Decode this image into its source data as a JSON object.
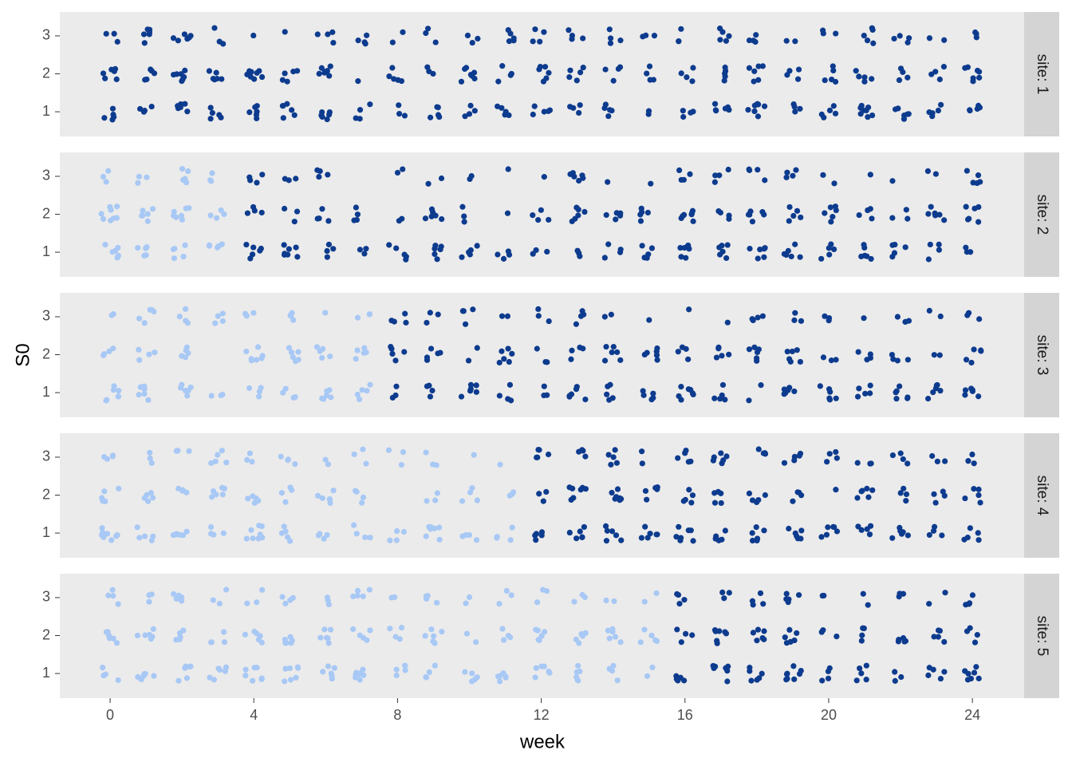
{
  "chart_data": {
    "type": "scatter",
    "xlabel": "week",
    "ylabel": "S0",
    "xlim": [
      -1.4,
      25.44
    ],
    "xticks": [
      0,
      4,
      8,
      12,
      16,
      20,
      24
    ],
    "ylim": [
      0.35,
      3.63
    ],
    "yticks": [
      1,
      2,
      3
    ],
    "facets": [
      {
        "label": "site: 1",
        "series": [
          {
            "color": "#0d3b8e",
            "x": [
              0,
              1,
              2,
              3,
              4,
              5,
              6,
              7,
              8,
              9,
              10,
              11,
              12,
              13,
              14,
              15,
              16,
              17,
              18,
              19,
              20,
              21,
              22,
              23,
              24
            ],
            "counts": [
              [
                5,
                6,
                3
              ],
              [
                4,
                5,
                6
              ],
              [
                6,
                7,
                6
              ],
              [
                5,
                6,
                3
              ],
              [
                6,
                8,
                1
              ],
              [
                6,
                5,
                1
              ],
              [
                6,
                8,
                4
              ],
              [
                4,
                1,
                4
              ],
              [
                3,
                5,
                2
              ],
              [
                5,
                3,
                3
              ],
              [
                4,
                7,
                3
              ],
              [
                5,
                4,
                5
              ],
              [
                5,
                6,
                4
              ],
              [
                4,
                5,
                4
              ],
              [
                5,
                4,
                4
              ],
              [
                2,
                4,
                3
              ],
              [
                4,
                4,
                3
              ],
              [
                6,
                5,
                5
              ],
              [
                7,
                6,
                4
              ],
              [
                4,
                4,
                2
              ],
              [
                5,
                5,
                3
              ],
              [
                8,
                5,
                5
              ],
              [
                6,
                4,
                4
              ],
              [
                5,
                4,
                2
              ],
              [
                5,
                7,
                3
              ]
            ]
          }
        ]
      },
      {
        "label": "site: 2",
        "series": [
          {
            "color": "#a8c8f5",
            "x": [
              0,
              1,
              2,
              3
            ],
            "counts": [
              [
                6,
                8,
                3
              ],
              [
                5,
                6,
                3
              ],
              [
                5,
                7,
                5
              ],
              [
                5,
                4,
                3
              ]
            ]
          },
          {
            "color": "#0d3b8e",
            "x": [
              4,
              5,
              6,
              7,
              8,
              9,
              10,
              11,
              12,
              13,
              14,
              15,
              16,
              17,
              18,
              19,
              20,
              21,
              22,
              23,
              24
            ],
            "counts": [
              [
                6,
                4,
                4
              ],
              [
                7,
                3,
                3
              ],
              [
                4,
                4,
                4
              ],
              [
                3,
                4,
                0
              ],
              [
                5,
                2,
                2
              ],
              [
                6,
                6,
                2
              ],
              [
                5,
                3,
                2
              ],
              [
                4,
                1,
                1
              ],
              [
                3,
                4,
                1
              ],
              [
                3,
                6,
                6
              ],
              [
                4,
                5,
                1
              ],
              [
                5,
                5,
                1
              ],
              [
                7,
                7,
                4
              ],
              [
                6,
                4,
                4
              ],
              [
                6,
                6,
                4
              ],
              [
                6,
                5,
                4
              ],
              [
                5,
                6,
                2
              ],
              [
                6,
                4,
                1
              ],
              [
                5,
                3,
                1
              ],
              [
                4,
                6,
                2
              ],
              [
                3,
                6,
                5
              ]
            ]
          }
        ]
      },
      {
        "label": "site: 3",
        "series": [
          {
            "color": "#a8c8f5",
            "x": [
              0,
              1,
              2,
              3,
              4,
              5,
              6,
              7
            ],
            "counts": [
              [
                7,
                4,
                2
              ],
              [
                6,
                4,
                5
              ],
              [
                6,
                5,
                4
              ],
              [
                3,
                0,
                4
              ],
              [
                4,
                7,
                3
              ],
              [
                4,
                6,
                4
              ],
              [
                6,
                5,
                1
              ],
              [
                5,
                5,
                3
              ]
            ]
          },
          {
            "color": "#0d3b8e",
            "x": [
              8,
              9,
              10,
              11,
              12,
              13,
              14,
              15,
              16,
              17,
              18,
              19,
              20,
              21,
              22,
              23,
              24
            ],
            "counts": [
              [
                3,
                5,
                4
              ],
              [
                4,
                5,
                3
              ],
              [
                6,
                2,
                4
              ],
              [
                4,
                6,
                2
              ],
              [
                3,
                3,
                3
              ],
              [
                6,
                4,
                4
              ],
              [
                5,
                6,
                2
              ],
              [
                5,
                6,
                1
              ],
              [
                7,
                4,
                1
              ],
              [
                5,
                5,
                1
              ],
              [
                2,
                6,
                4
              ],
              [
                7,
                6,
                3
              ],
              [
                6,
                3,
                3
              ],
              [
                5,
                4,
                1
              ],
              [
                6,
                4,
                3
              ],
              [
                6,
                2,
                2
              ],
              [
                6,
                5,
                3
              ]
            ]
          }
        ]
      },
      {
        "label": "site: 4",
        "series": [
          {
            "color": "#a8c8f5",
            "x": [
              0,
              1,
              2,
              3,
              4,
              5,
              6,
              7,
              8,
              9,
              10,
              11
            ],
            "counts": [
              [
                8,
                6,
                4
              ],
              [
                5,
                5,
                3
              ],
              [
                6,
                4,
                3
              ],
              [
                4,
                6,
                5
              ],
              [
                8,
                5,
                3
              ],
              [
                5,
                4,
                4
              ],
              [
                4,
                6,
                2
              ],
              [
                4,
                4,
                3
              ],
              [
                4,
                0,
                3
              ],
              [
                7,
                3,
                3
              ],
              [
                4,
                4,
                1
              ],
              [
                4,
                3,
                1
              ]
            ]
          },
          {
            "color": "#0d3b8e",
            "x": [
              12,
              13,
              14,
              15,
              16,
              17,
              18,
              19,
              20,
              21,
              22,
              23,
              24
            ],
            "counts": [
              [
                5,
                3,
                5
              ],
              [
                6,
                7,
                4
              ],
              [
                6,
                7,
                5
              ],
              [
                6,
                5,
                2
              ],
              [
                7,
                5,
                5
              ],
              [
                5,
                5,
                6
              ],
              [
                6,
                5,
                4
              ],
              [
                6,
                4,
                5
              ],
              [
                6,
                1,
                4
              ],
              [
                5,
                6,
                3
              ],
              [
                6,
                4,
                4
              ],
              [
                4,
                4,
                3
              ],
              [
                5,
                5,
                3
              ]
            ]
          }
        ]
      },
      {
        "label": "site: 5",
        "series": [
          {
            "color": "#a8c8f5",
            "x": [
              0,
              1,
              2,
              3,
              4,
              5,
              6,
              7,
              8,
              9,
              10,
              11,
              12,
              13,
              14,
              15
            ],
            "counts": [
              [
                4,
                6,
                4
              ],
              [
                7,
                6,
                3
              ],
              [
                6,
                5,
                5
              ],
              [
                6,
                4,
                3
              ],
              [
                7,
                6,
                3
              ],
              [
                7,
                6,
                4
              ],
              [
                6,
                6,
                3
              ],
              [
                8,
                5,
                5
              ],
              [
                4,
                4,
                2
              ],
              [
                4,
                6,
                4
              ],
              [
                5,
                2,
                2
              ],
              [
                6,
                4,
                3
              ],
              [
                6,
                6,
                3
              ],
              [
                6,
                5,
                3
              ],
              [
                4,
                6,
                2
              ],
              [
                2,
                5,
                2
              ]
            ]
          },
          {
            "color": "#0d3b8e",
            "x": [
              16,
              17,
              18,
              19,
              20,
              21,
              22,
              23,
              24
            ],
            "counts": [
              [
                7,
                4,
                4
              ],
              [
                7,
                7,
                3
              ],
              [
                6,
                6,
                4
              ],
              [
                8,
                6,
                5
              ],
              [
                4,
                3,
                2
              ],
              [
                5,
                4,
                2
              ],
              [
                3,
                5,
                3
              ],
              [
                5,
                5,
                2
              ],
              [
                7,
                4,
                4
              ]
            ]
          }
        ]
      }
    ]
  }
}
